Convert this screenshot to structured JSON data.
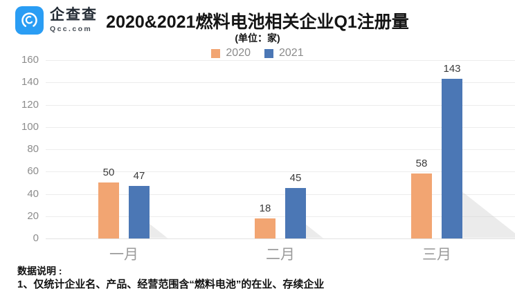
{
  "brand": {
    "name": "企查查",
    "domain": "Qcc.com",
    "badge_color": "#2A9DF4"
  },
  "header": {
    "title": "2020&2021燃料电池相关企业Q1注册量",
    "unit": "(单位：家)"
  },
  "chart_data": {
    "type": "bar",
    "title": "2020&2021燃料电池相关企业Q1注册量",
    "unit_label": "(单位：家)",
    "categories": [
      "一月",
      "二月",
      "三月"
    ],
    "series": [
      {
        "name": "2020",
        "color": "#F2A572",
        "values": [
          50,
          18,
          58
        ]
      },
      {
        "name": "2021",
        "color": "#4B77B5",
        "values": [
          47,
          45,
          143
        ]
      }
    ],
    "ylim": [
      0,
      160
    ],
    "ytick_interval": 20,
    "yticks": [
      0,
      20,
      40,
      60,
      80,
      100,
      120,
      140,
      160
    ],
    "grid": true,
    "legend_position": "top",
    "value_labels": true,
    "colors": {
      "gridline": "#ececec",
      "axis_text": "#8c8c8c",
      "category_text": "#9b9b9b",
      "value_text": "#3a3a3a"
    }
  },
  "footnote": {
    "heading": "数据说明 :",
    "lines": [
      "1、仅统计企业名、产品、经营范围含“燃料电池”的在业、存续企业"
    ]
  }
}
